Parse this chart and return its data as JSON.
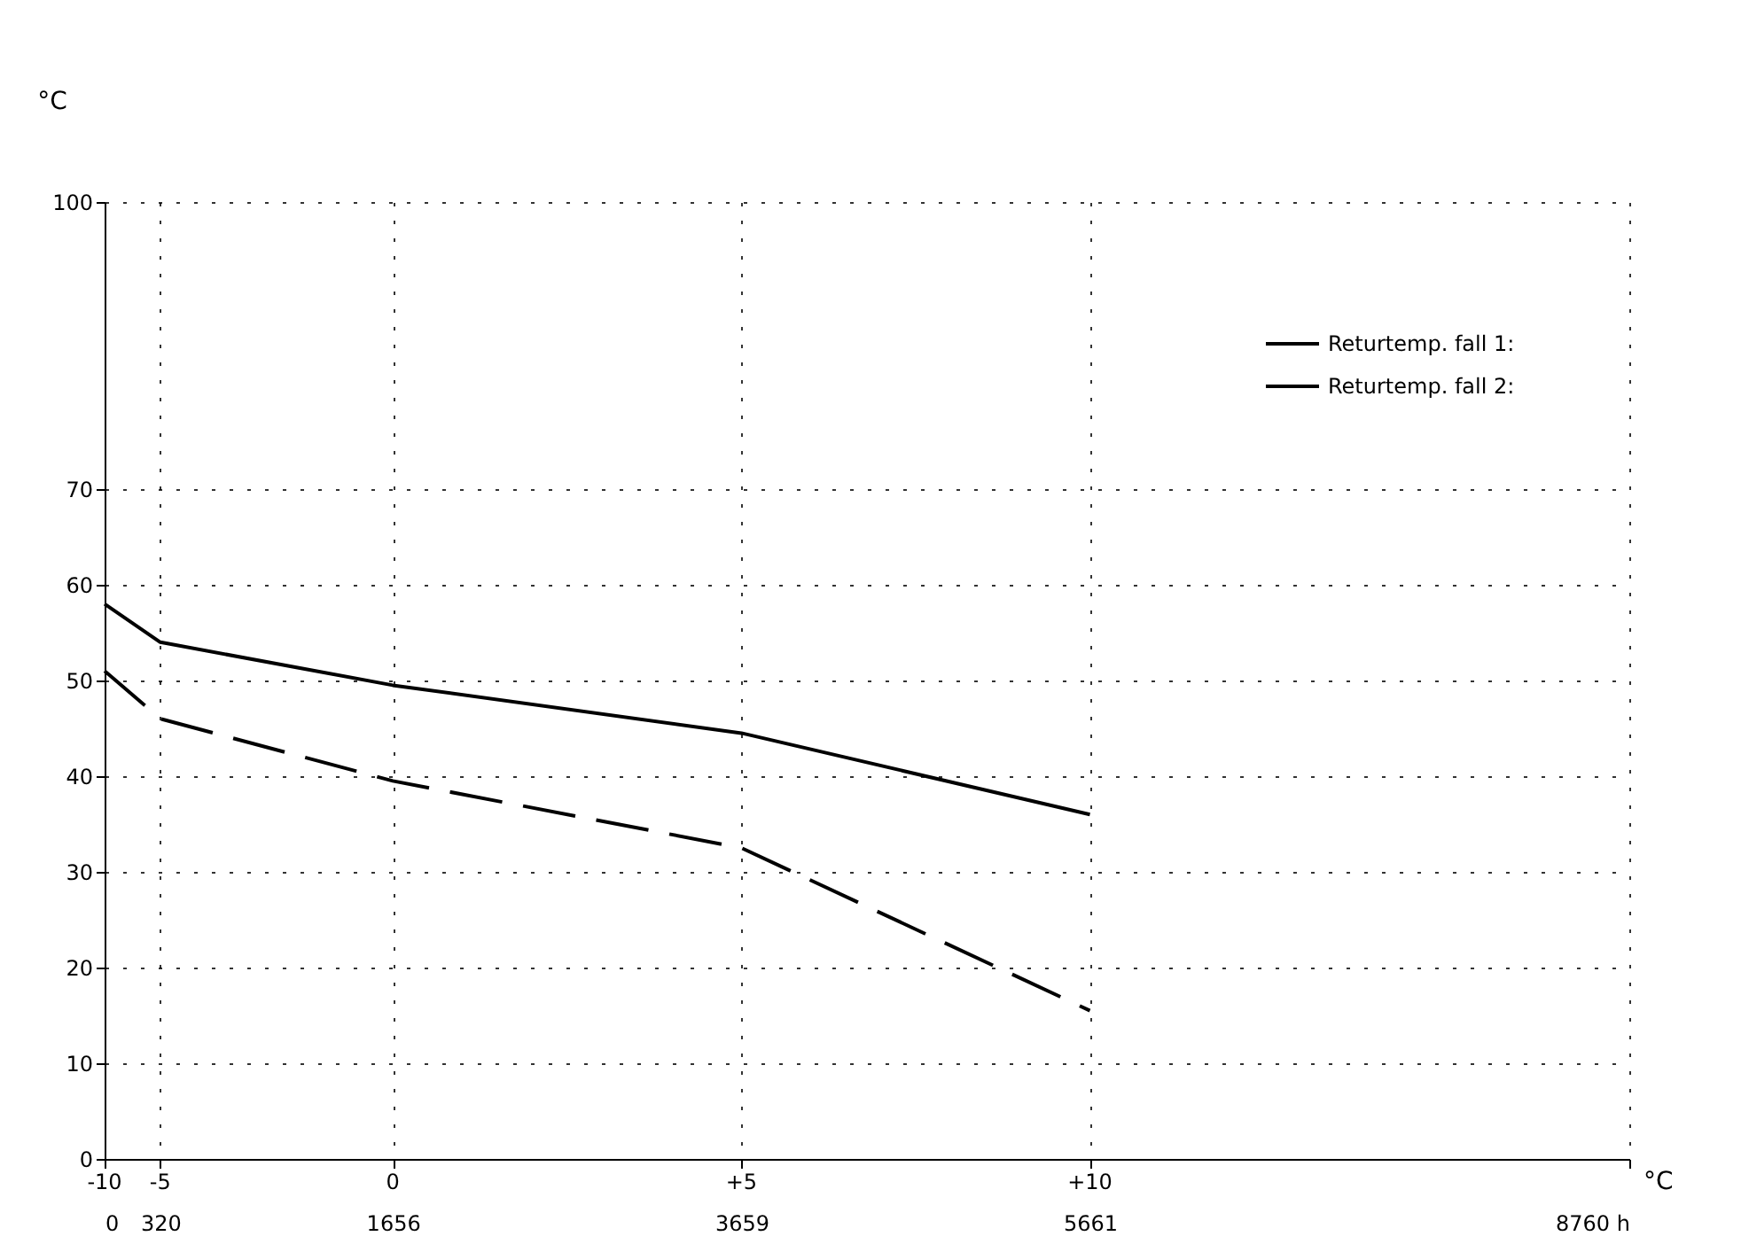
{
  "chart_data": {
    "type": "line",
    "ylabel": "°C",
    "x": [
      0,
      320,
      1656,
      3659,
      5661
    ],
    "series": [
      {
        "name": "Returtemp. fall 1:",
        "color": "#000000",
        "line_style": "solid",
        "values": [
          58,
          54,
          49.5,
          44.5,
          36
        ]
      },
      {
        "name": "Returtemp. fall 2:",
        "color": "#000000",
        "line_style": "dashed",
        "values": [
          51,
          46,
          39.5,
          32.5,
          15.5
        ]
      }
    ],
    "xlim": [
      0,
      8760
    ],
    "xticks": [
      0,
      320,
      1656,
      3659,
      5661,
      {
        "value": 8760,
        "label": "8760 h"
      }
    ],
    "ylim": [
      0,
      100
    ],
    "yticks": [
      0,
      10,
      20,
      30,
      40,
      50,
      60,
      70,
      100
    ],
    "annotations": [
      "-10",
      "-5",
      "0",
      "+5",
      "+10",
      "°C"
    ],
    "grid": true,
    "legend": "top right",
    "marker": "none"
  }
}
